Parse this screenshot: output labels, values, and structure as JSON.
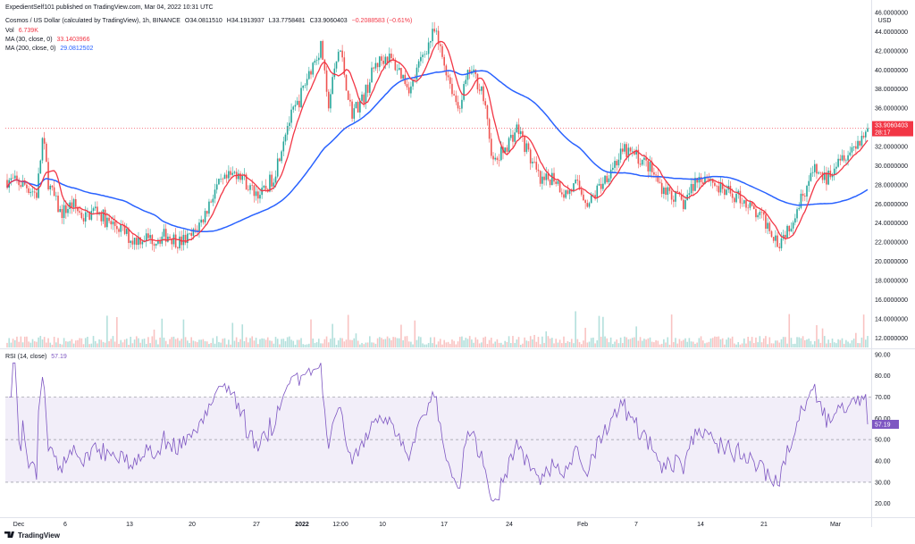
{
  "publish_line": "ExpedientSelf101 published on TradingView.com, Mar 04, 2022 10:31 UTC",
  "header": {
    "symbol": "Cosmos / US Dollar (calculated by TradingView), 1h, BINANCE",
    "o": "O34.0811510",
    "h": "H34.1913937",
    "l": "L33.7758481",
    "c": "C33.9060403",
    "chg": "−0.2088583 (−0.61%)",
    "vol_label": "Vol",
    "vol_value": "6.739K",
    "ma30_label": "MA (30, close, 0)",
    "ma30_value": "33.1403966",
    "ma200_label": "MA (200, close, 0)",
    "ma200_value": "29.0812502",
    "rsi_label": "RSI (14, close)",
    "rsi_value": "57.19"
  },
  "logo_text": "TradingView",
  "colors": {
    "up": "#26a69a",
    "down": "#ef5350",
    "ma30": "#f23645",
    "ma200": "#2962ff",
    "rsi": "#7e57c2",
    "rsi_band": "#ede7f6"
  },
  "chart_data": [
    {
      "type": "candlestick",
      "x_tick_labels": [
        "Dec",
        "6",
        "13",
        "20",
        "27",
        "2022",
        "12:00",
        "10",
        "17",
        "24",
        "Feb",
        "7",
        "14",
        "21",
        "Mar"
      ],
      "currency_label": "USD",
      "y_tick_labels": [
        "46.0000000",
        "44.0000000",
        "42.0000000",
        "40.0000000",
        "38.0000000",
        "36.0000000",
        "34.0000000",
        "32.0000000",
        "30.0000000",
        "28.0000000",
        "26.0000000",
        "24.0000000",
        "22.0000000",
        "20.0000000",
        "18.0000000",
        "16.0000000",
        "14.0000000",
        "12.0000000"
      ],
      "ylim": [
        11,
        46
      ],
      "last_price_label": "33.9060403",
      "countdown_label": "28:17",
      "last_price": 33.906,
      "price_path": [
        [
          0,
          28.5
        ],
        [
          3,
          28.0
        ],
        [
          5,
          27.0
        ],
        [
          6,
          33.0
        ],
        [
          7,
          28.0
        ],
        [
          9,
          25.0
        ],
        [
          11,
          26.0
        ],
        [
          13,
          24.5
        ],
        [
          15,
          25.5
        ],
        [
          17,
          24.0
        ],
        [
          19,
          23.5
        ],
        [
          21,
          22.2
        ],
        [
          23,
          22.5
        ],
        [
          25,
          22.3
        ],
        [
          27,
          22.8
        ],
        [
          29,
          22.0
        ],
        [
          31,
          22.5
        ],
        [
          33,
          24.5
        ],
        [
          35,
          27.5
        ],
        [
          37,
          28.5
        ],
        [
          39,
          29.5
        ],
        [
          41,
          27.5
        ],
        [
          43,
          27.0
        ],
        [
          45,
          29.0
        ],
        [
          47,
          34.0
        ],
        [
          49,
          36.5
        ],
        [
          51,
          40.0
        ],
        [
          53,
          42.5
        ],
        [
          54,
          36.0
        ],
        [
          56,
          42.5
        ],
        [
          58,
          35.5
        ],
        [
          60,
          37.0
        ],
        [
          62,
          40.5
        ],
        [
          64,
          41.5
        ],
        [
          66,
          40.0
        ],
        [
          68,
          38.0
        ],
        [
          70,
          41.5
        ],
        [
          72,
          44.0
        ],
        [
          74,
          40.0
        ],
        [
          76,
          36.0
        ],
        [
          78,
          40.0
        ],
        [
          80,
          38.0
        ],
        [
          82,
          30.0
        ],
        [
          84,
          32.0
        ],
        [
          86,
          34.0
        ],
        [
          88,
          31.0
        ],
        [
          90,
          28.0
        ],
        [
          92,
          29.0
        ],
        [
          94,
          27.0
        ],
        [
          96,
          28.0
        ],
        [
          98,
          26.0
        ],
        [
          100,
          28.0
        ],
        [
          102,
          30.0
        ],
        [
          104,
          31.5
        ],
        [
          106,
          31.0
        ],
        [
          108,
          30.0
        ],
        [
          110,
          28.0
        ],
        [
          112,
          27.0
        ],
        [
          114,
          26.0
        ],
        [
          116,
          28.5
        ],
        [
          118,
          29.0
        ],
        [
          120,
          27.5
        ],
        [
          122,
          27.0
        ],
        [
          124,
          26.5
        ],
        [
          126,
          25.0
        ],
        [
          128,
          24.0
        ],
        [
          130,
          22.0
        ],
        [
          132,
          24.0
        ],
        [
          134,
          27.0
        ],
        [
          136,
          29.5
        ],
        [
          138,
          28.5
        ],
        [
          140,
          31.0
        ],
        [
          142,
          31.5
        ],
        [
          144,
          33.0
        ],
        [
          145,
          33.9
        ]
      ],
      "volume_axis_top": 17
    },
    {
      "type": "line",
      "title": "RSI (14, close)",
      "y_tick_labels": [
        "90.00",
        "80.00",
        "70.00",
        "60.00",
        "50.00",
        "40.00",
        "30.00",
        "20.00"
      ],
      "ylim": [
        14,
        92
      ],
      "bands": [
        30,
        50,
        70
      ],
      "last_value": 57.19
    }
  ]
}
